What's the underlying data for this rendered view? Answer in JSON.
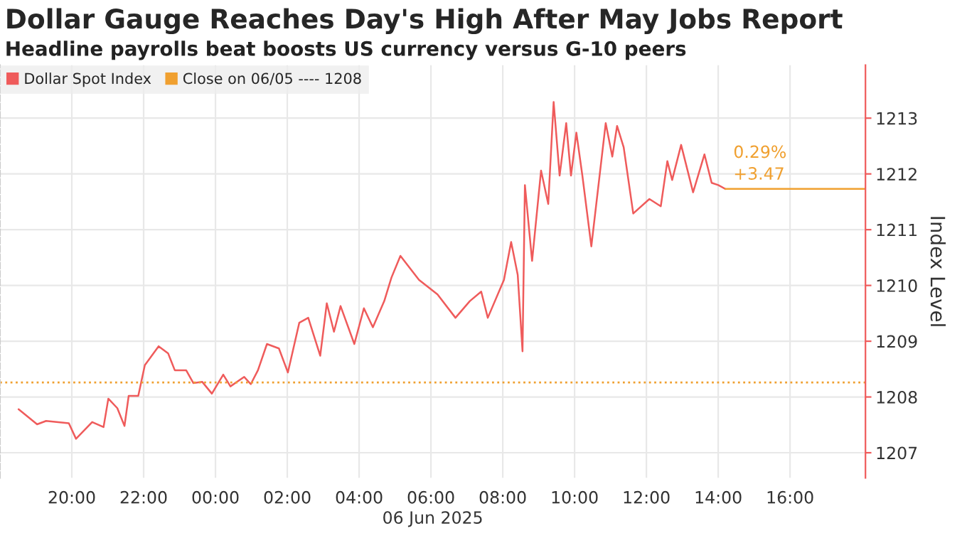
{
  "chart_data": {
    "type": "line",
    "title": "Dollar Gauge Reaches Day's High After May Jobs Report",
    "subtitle": "Headline payrolls beat boosts US currency versus G-10 peers",
    "xlabel": "06 Jun 2025",
    "ylabel": "Index Level",
    "series": [
      {
        "name": "Dollar Spot Index",
        "color": "#ef5b5b",
        "x": [
          "2025-06-05T18:31",
          "2025-06-05T19:02",
          "2025-06-05T19:17",
          "2025-06-05T19:55",
          "2025-06-05T20:07",
          "2025-06-05T20:34",
          "2025-06-05T20:53",
          "2025-06-05T21:01",
          "2025-06-05T21:16",
          "2025-06-05T21:28",
          "2025-06-05T21:35",
          "2025-06-05T21:51",
          "2025-06-05T22:02",
          "2025-06-05T22:25",
          "2025-06-05T22:41",
          "2025-06-05T22:52",
          "2025-06-05T23:11",
          "2025-06-05T23:23",
          "2025-06-05T23:38",
          "2025-06-05T23:54",
          "2025-06-06T00:13",
          "2025-06-06T00:25",
          "2025-06-06T00:48",
          "2025-06-06T00:59",
          "2025-06-06T01:11",
          "2025-06-06T01:26",
          "2025-06-06T01:46",
          "2025-06-06T02:01",
          "2025-06-06T02:20",
          "2025-06-06T02:35",
          "2025-06-06T02:55",
          "2025-06-06T03:06",
          "2025-06-06T03:18",
          "2025-06-06T03:29",
          "2025-06-06T03:52",
          "2025-06-06T04:08",
          "2025-06-06T04:23",
          "2025-06-06T04:42",
          "2025-06-06T04:54",
          "2025-06-06T05:09",
          "2025-06-06T05:40",
          "2025-06-06T06:11",
          "2025-06-06T06:41",
          "2025-06-06T07:05",
          "2025-06-06T07:24",
          "2025-06-06T07:35",
          "2025-06-06T08:02",
          "2025-06-06T08:14",
          "2025-06-06T08:25",
          "2025-06-06T08:33",
          "2025-06-06T08:37",
          "2025-06-06T08:49",
          "2025-06-06T09:04",
          "2025-06-06T09:16",
          "2025-06-06T09:25",
          "2025-06-06T09:35",
          "2025-06-06T09:46",
          "2025-06-06T09:54",
          "2025-06-06T10:03",
          "2025-06-06T10:13",
          "2025-06-06T10:28",
          "2025-06-06T10:52",
          "2025-06-06T11:03",
          "2025-06-06T11:11",
          "2025-06-06T11:22",
          "2025-06-06T11:38",
          "2025-06-06T12:05",
          "2025-06-06T12:24",
          "2025-06-06T12:35",
          "2025-06-06T12:43",
          "2025-06-06T12:58",
          "2025-06-06T13:18",
          "2025-06-06T13:37",
          "2025-06-06T13:49",
          "2025-06-06T14:00",
          "2025-06-06T14:12"
        ],
        "values": [
          1207.78,
          1207.51,
          1207.57,
          1207.53,
          1207.25,
          1207.55,
          1207.46,
          1207.97,
          1207.8,
          1207.48,
          1208.02,
          1208.02,
          1208.57,
          1208.91,
          1208.78,
          1208.48,
          1208.48,
          1208.25,
          1208.27,
          1208.06,
          1208.4,
          1208.19,
          1208.36,
          1208.23,
          1208.48,
          1208.95,
          1208.87,
          1208.44,
          1209.33,
          1209.42,
          1208.74,
          1209.68,
          1209.17,
          1209.63,
          1208.95,
          1209.59,
          1209.25,
          1209.72,
          1210.14,
          1210.53,
          1210.1,
          1209.84,
          1209.42,
          1209.72,
          1209.89,
          1209.42,
          1210.1,
          1210.78,
          1210.19,
          1208.82,
          1211.8,
          1210.44,
          1212.06,
          1211.46,
          1213.29,
          1211.97,
          1212.91,
          1211.97,
          1212.74,
          1211.97,
          1210.7,
          1212.91,
          1212.31,
          1212.86,
          1212.48,
          1211.29,
          1211.55,
          1211.42,
          1212.23,
          1211.89,
          1212.52,
          1211.67,
          1212.35,
          1211.84,
          1211.8,
          1211.73
        ]
      },
      {
        "color": "#f0a030",
        "x": [
          "2025-06-06T14:12",
          "2025-06-06T18:06"
        ],
        "values": [
          1211.73,
          1211.73
        ]
      }
    ],
    "ref_lines": [
      {
        "axis": "y",
        "value": 1208.26,
        "label": "Close on 06/05 ---- 1208",
        "color": "#f0a030",
        "line_style": "dotted"
      }
    ],
    "annotations": [
      "0.29%",
      "+3.47"
    ],
    "xlim": [
      "2025-06-05T18:00",
      "2025-06-06T18:06"
    ],
    "xticks": [
      {
        "value": "2025-06-05T20:00",
        "label": "20:00"
      },
      {
        "value": "2025-06-05T22:00",
        "label": "22:00"
      },
      {
        "value": "2025-06-06T00:00",
        "label": "00:00"
      },
      {
        "value": "2025-06-06T02:00",
        "label": "02:00"
      },
      {
        "value": "2025-06-06T04:00",
        "label": "04:00"
      },
      {
        "value": "2025-06-06T06:00",
        "label": "06:00"
      },
      {
        "value": "2025-06-06T08:00",
        "label": "08:00"
      },
      {
        "value": "2025-06-06T10:00",
        "label": "10:00"
      },
      {
        "value": "2025-06-06T12:00",
        "label": "12:00"
      },
      {
        "value": "2025-06-06T14:00",
        "label": "14:00"
      },
      {
        "value": "2025-06-06T16:00",
        "label": "16:00"
      }
    ],
    "ylim": [
      1206.55,
      1213.95
    ],
    "yticks": [
      1207,
      1208,
      1209,
      1210,
      1211,
      1212,
      1213
    ],
    "grid": true,
    "legend": "top left",
    "marker": "none",
    "line_style": "solid"
  }
}
